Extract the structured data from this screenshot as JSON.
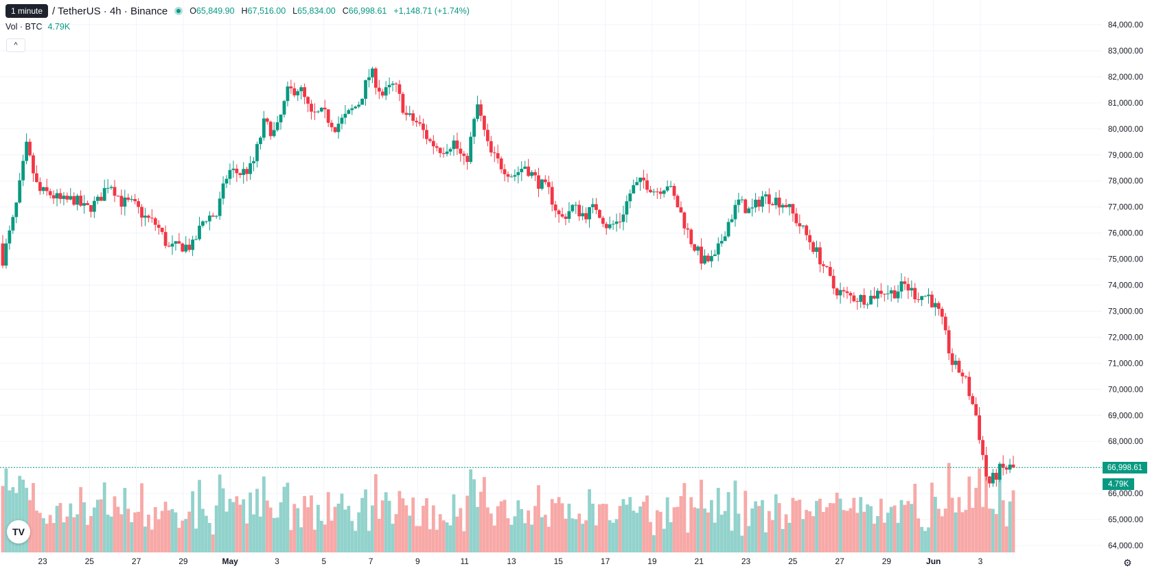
{
  "legend": {
    "tooltip": "1 minute",
    "symbol": "/ TetherUS · 4h · Binance",
    "open_label": "O",
    "open": "65,849.90",
    "high_label": "H",
    "high": "67,516.00",
    "low_label": "L",
    "low": "65,834.00",
    "close_label": "C",
    "close": "66,998.61",
    "change": "+1,148.71 (+1.74%)"
  },
  "volume_legend": {
    "label": "Vol · BTC",
    "value": "4.79K"
  },
  "price_label": "66,998.61",
  "volume_label": "4.79K",
  "icons": {
    "collapse": "chevron-up-icon",
    "logo": "tradingview-logo",
    "settings": "gear-icon"
  },
  "colors": {
    "up": "#089981",
    "down": "#f23645",
    "up_volume": "#92d2cc",
    "down_volume": "#f7a9a7",
    "grid": "#f0f3fa"
  },
  "chart_data": {
    "type": "candlestick",
    "interval": "4h",
    "y_axis": {
      "min": 63700,
      "max": 84250,
      "position": "right",
      "ticks": [
        "64,000.00",
        "65,000.00",
        "66,000.00",
        "67,000.00",
        "68,000.00",
        "69,000.00",
        "70,000.00",
        "71,000.00",
        "72,000.00",
        "73,000.00",
        "74,000.00",
        "75,000.00",
        "76,000.00",
        "77,000.00",
        "78,000.00",
        "79,000.00",
        "80,000.00",
        "81,000.00",
        "82,000.00",
        "83,000.00",
        "84,000.00"
      ],
      "tick_values": [
        64000,
        65000,
        66000,
        67000,
        68000,
        69000,
        70000,
        71000,
        72000,
        73000,
        74000,
        75000,
        76000,
        77000,
        78000,
        79000,
        80000,
        81000,
        82000,
        83000,
        84000
      ]
    },
    "x_axis": {
      "ticks": [
        "23",
        "25",
        "27",
        "29",
        "May",
        "3",
        "5",
        "7",
        "9",
        "11",
        "13",
        "15",
        "17",
        "19",
        "21",
        "23",
        "25",
        "27",
        "29",
        "Jun",
        "3"
      ],
      "bold_ticks": [
        "May",
        "Jun"
      ]
    },
    "last_close": 66998.61,
    "grid": true,
    "segments": [
      [
        75600,
        75000
      ],
      [
        76900,
        76700
      ],
      [
        79200,
        79300
      ],
      [
        78000,
        77600
      ],
      [
        77500,
        77500
      ],
      [
        77900,
        77200
      ],
      [
        77200,
        77300
      ],
      [
        77100,
        76900
      ],
      [
        77100,
        77200
      ],
      [
        78600,
        78000
      ],
      [
        77600,
        77200
      ],
      [
        79200,
        77100
      ],
      [
        76500,
        76600
      ],
      [
        75900,
        76300
      ],
      [
        76900,
        75400
      ],
      [
        75500,
        75500
      ],
      [
        75600,
        75500
      ],
      [
        76600,
        76600
      ],
      [
        77200,
        76700
      ],
      [
        76100,
        78400
      ],
      [
        77900,
        78300
      ],
      [
        78200,
        78500
      ],
      [
        78200,
        80200
      ],
      [
        80900,
        79800
      ],
      [
        81100,
        81400
      ],
      [
        81600,
        81600
      ],
      [
        82200,
        80500
      ],
      [
        80900,
        80600
      ],
      [
        79900,
        80100
      ],
      [
        80300,
        80500
      ],
      [
        80400,
        81000
      ],
      [
        81500,
        82200
      ],
      [
        81600,
        81300
      ],
      [
        81300,
        81700
      ],
      [
        80900,
        80500
      ],
      [
        80700,
        80200
      ],
      [
        80700,
        79500
      ],
      [
        79500,
        79200
      ],
      [
        79500,
        79500
      ],
      [
        78700,
        78600
      ],
      [
        79000,
        80900
      ],
      [
        81200,
        79100
      ],
      [
        78900,
        78600
      ],
      [
        78200,
        78200
      ],
      [
        78200,
        78600
      ],
      [
        78700,
        78000
      ],
      [
        77900,
        77600
      ],
      [
        76800,
        76500
      ],
      [
        76600,
        77000
      ],
      [
        77100,
        76700
      ],
      [
        77100,
        77000
      ],
      [
        76300,
        76200
      ],
      [
        76500,
        76500
      ],
      [
        77100,
        77700
      ],
      [
        77400,
        78000
      ],
      [
        77600,
        77600
      ],
      [
        77900,
        77900
      ],
      [
        77600,
        76900
      ],
      [
        77100,
        75700
      ],
      [
        75400,
        74900
      ],
      [
        74500,
        75000
      ],
      [
        75300,
        76300
      ],
      [
        76700,
        77200
      ],
      [
        77300,
        76800
      ],
      [
        77300,
        77400
      ],
      [
        77800,
        77300
      ],
      [
        77500,
        77100
      ],
      [
        76700,
        76400
      ],
      [
        76400,
        75700
      ],
      [
        75700,
        74900
      ],
      [
        74900,
        73900
      ],
      [
        73600,
        73600
      ],
      [
        73400,
        73500
      ],
      [
        73800,
        73500
      ],
      [
        73300,
        73800
      ],
      [
        73500,
        73700
      ],
      [
        74000,
        74000
      ],
      [
        73600,
        73600
      ],
      [
        73600,
        73600
      ],
      [
        73800,
        72800
      ],
      [
        71600,
        71000
      ],
      [
        71600,
        70500
      ],
      [
        69800,
        69000
      ],
      [
        68300,
        66300
      ],
      [
        67400,
        66900
      ],
      [
        66000,
        67000
      ]
    ],
    "volume": {
      "max": 9000,
      "note": "volume pane shares chart bottom, bars colored by candle direction",
      "last": 4790
    }
  }
}
